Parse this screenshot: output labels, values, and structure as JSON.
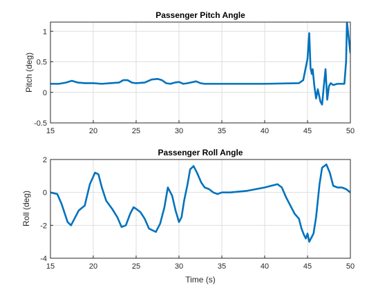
{
  "colors": {
    "line": "#0072BD",
    "axes": "#262626",
    "grid": "#dedede",
    "background": "#ffffff"
  },
  "chart_data": [
    {
      "type": "line",
      "title": "Passenger Pitch Angle",
      "xlabel": "",
      "ylabel": "Pitch (deg)",
      "xlim": [
        15,
        50
      ],
      "ylim": [
        -0.5,
        1.15
      ],
      "xticks": [
        "15",
        "20",
        "25",
        "30",
        "35",
        "40",
        "45",
        "50"
      ],
      "yticks": [
        "-0.5",
        "0",
        "0.5",
        "1"
      ],
      "ytick_values": [
        -0.5,
        0,
        0.5,
        1
      ],
      "grid": true,
      "series": [
        {
          "x": [
            15,
            16,
            16.8,
            17.5,
            18.2,
            19,
            20,
            21,
            22,
            23,
            23.5,
            24,
            24.5,
            25,
            26,
            26.8,
            27.5,
            28,
            28.5,
            29,
            29.5,
            30,
            30.5,
            31,
            32,
            32.5,
            33,
            35,
            40,
            44,
            44.5,
            45,
            45.2,
            45.35,
            45.5,
            45.6,
            45.8,
            46,
            46.2,
            46.5,
            46.7,
            46.9,
            47.1,
            47.3,
            47.5,
            47.7,
            48,
            48.5,
            49,
            49.3,
            49.5,
            49.6,
            49.8,
            50
          ],
          "y": [
            0.14,
            0.14,
            0.16,
            0.19,
            0.16,
            0.15,
            0.15,
            0.14,
            0.15,
            0.16,
            0.2,
            0.2,
            0.16,
            0.15,
            0.16,
            0.21,
            0.22,
            0.2,
            0.15,
            0.14,
            0.16,
            0.17,
            0.14,
            0.15,
            0.18,
            0.15,
            0.14,
            0.14,
            0.14,
            0.15,
            0.2,
            0.55,
            0.97,
            0.4,
            0.3,
            0.38,
            0.1,
            -0.1,
            0.05,
            -0.15,
            -0.2,
            0.1,
            0.38,
            -0.12,
            0.1,
            0.15,
            0.12,
            0.14,
            0.14,
            0.14,
            0.5,
            1.15,
            0.9,
            0.65
          ]
        }
      ]
    },
    {
      "type": "line",
      "title": "Passenger Roll Angle",
      "xlabel": "Time (s)",
      "ylabel": "Roll (deg)",
      "xlim": [
        15,
        50
      ],
      "ylim": [
        -4,
        2
      ],
      "xticks": [
        "15",
        "20",
        "25",
        "30",
        "35",
        "40",
        "45",
        "50"
      ],
      "yticks": [
        "-4",
        "-2",
        "0",
        "2"
      ],
      "ytick_values": [
        -4,
        -2,
        0,
        2
      ],
      "grid": true,
      "series": [
        {
          "x": [
            15,
            15.8,
            16.3,
            17,
            17.4,
            17.8,
            18.3,
            19,
            19.6,
            20.2,
            20.6,
            21,
            21.5,
            22.2,
            22.8,
            23.3,
            23.8,
            24.3,
            24.7,
            25,
            25.5,
            26,
            26.5,
            27.3,
            27.8,
            28.3,
            28.7,
            29.2,
            29.6,
            30,
            30.3,
            30.6,
            31,
            31.3,
            31.7,
            32.1,
            32.6,
            33,
            33.5,
            34,
            34.5,
            35,
            36,
            38,
            40,
            41.5,
            42,
            42.5,
            43,
            43.5,
            44,
            44.3,
            44.6,
            44.8,
            45,
            45.2,
            45.4,
            45.7,
            46,
            46.4,
            46.7,
            47.2,
            47.6,
            48,
            48.5,
            49,
            49.5,
            50
          ],
          "y": [
            0,
            -0.1,
            -0.7,
            -1.8,
            -2.0,
            -1.6,
            -1.1,
            -0.8,
            0.5,
            1.2,
            1.1,
            0.3,
            -0.5,
            -1.0,
            -1.5,
            -2.1,
            -2.0,
            -1.3,
            -0.9,
            -1.0,
            -1.2,
            -1.6,
            -2.2,
            -2.4,
            -1.9,
            -0.9,
            0.3,
            -0.2,
            -1.1,
            -1.8,
            -1.5,
            -0.5,
            0.5,
            1.4,
            1.6,
            1.2,
            0.6,
            0.3,
            0.2,
            0.0,
            -0.1,
            0.0,
            0.0,
            0.1,
            0.3,
            0.5,
            0.3,
            -0.3,
            -0.8,
            -1.3,
            -1.6,
            -2.2,
            -2.6,
            -2.8,
            -2.5,
            -3.0,
            -2.8,
            -2.5,
            -1.5,
            0.5,
            1.5,
            1.7,
            1.2,
            0.4,
            0.3,
            0.3,
            0.2,
            0.0
          ]
        }
      ]
    }
  ]
}
